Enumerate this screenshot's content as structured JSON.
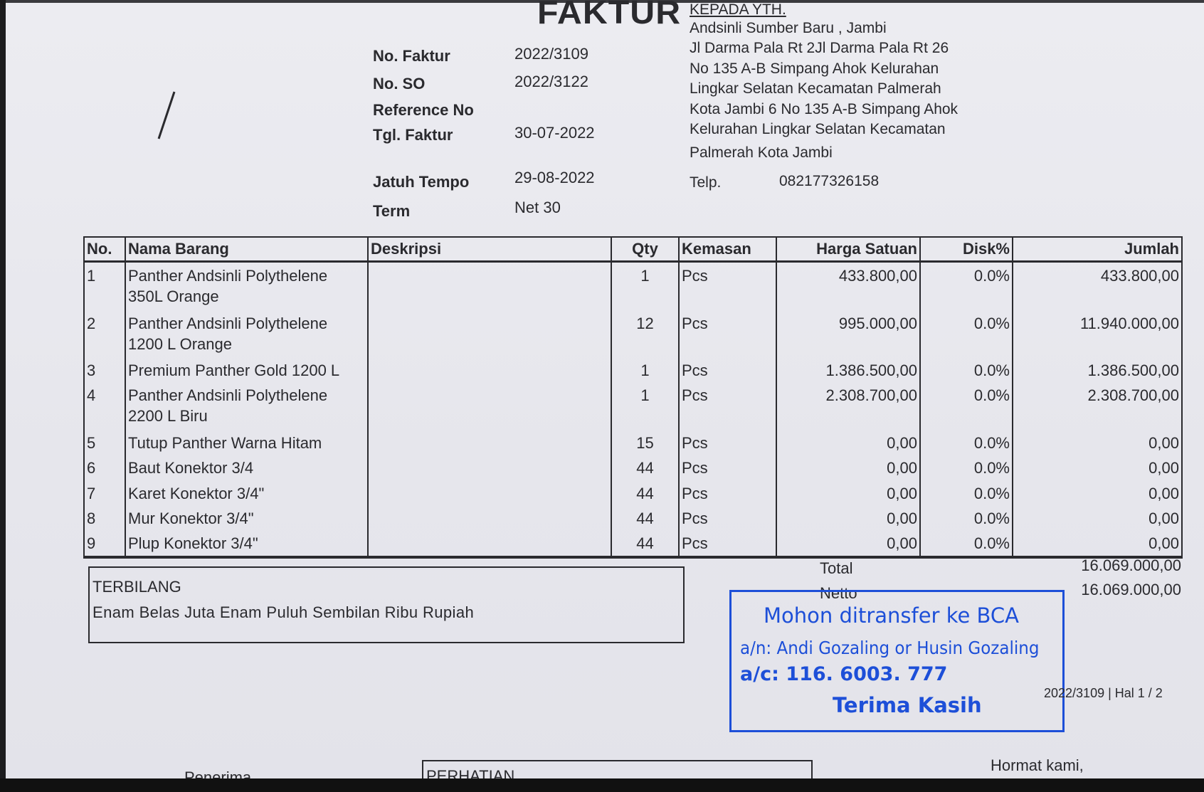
{
  "title": "FAKTUR",
  "recipient": {
    "heading": "KEPADA YTH.",
    "address_lines": [
      "Andsinli Sumber Baru , Jambi",
      "Jl Darma Pala Rt 2Jl Darma Pala Rt 26",
      "No 135 A-B Simpang Ahok Kelurahan",
      "Lingkar Selatan Kecamatan Palmerah",
      "Kota Jambi 6 No 135 A-B Simpang Ahok",
      "Kelurahan Lingkar Selatan Kecamatan",
      "Palmerah Kota Jambi"
    ],
    "telp_label": "Telp.",
    "telp": "082177326158"
  },
  "meta": [
    {
      "label": "No. Faktur",
      "value": "2022/3109"
    },
    {
      "label": "No. SO",
      "value": "2022/3122"
    },
    {
      "label": "Reference No",
      "value": ""
    },
    {
      "label": "Tgl. Faktur",
      "value": "30-07-2022"
    },
    {
      "label": "Jatuh Tempo",
      "value": "29-08-2022"
    },
    {
      "label": "Term",
      "value": "Net 30"
    }
  ],
  "table": {
    "headers": [
      "No.",
      "Nama Barang",
      "Deskripsi",
      "Qty",
      "Kemasan",
      "Harga Satuan",
      "Disk%",
      "Jumlah"
    ],
    "rows": [
      {
        "no": "1",
        "name": "Panther Andsinli Polythelene 350L Orange",
        "desc": "",
        "qty": "1",
        "unit": "Pcs",
        "price": "433.800,00",
        "disc": "0.0%",
        "amount": "433.800,00"
      },
      {
        "no": "2",
        "name": "Panther Andsinli Polythelene 1200 L Orange",
        "desc": "",
        "qty": "12",
        "unit": "Pcs",
        "price": "995.000,00",
        "disc": "0.0%",
        "amount": "11.940.000,00"
      },
      {
        "no": "3",
        "name": "Premium Panther Gold 1200 L",
        "desc": "",
        "qty": "1",
        "unit": "Pcs",
        "price": "1.386.500,00",
        "disc": "0.0%",
        "amount": "1.386.500,00"
      },
      {
        "no": "4",
        "name": "Panther Andsinli Polythelene 2200 L Biru",
        "desc": "",
        "qty": "1",
        "unit": "Pcs",
        "price": "2.308.700,00",
        "disc": "0.0%",
        "amount": "2.308.700,00"
      },
      {
        "no": "5",
        "name": "Tutup Panther Warna Hitam",
        "desc": "",
        "qty": "15",
        "unit": "Pcs",
        "price": "0,00",
        "disc": "0.0%",
        "amount": "0,00"
      },
      {
        "no": "6",
        "name": "Baut Konektor 3/4",
        "desc": "",
        "qty": "44",
        "unit": "Pcs",
        "price": "0,00",
        "disc": "0.0%",
        "amount": "0,00"
      },
      {
        "no": "7",
        "name": "Karet Konektor 3/4\"",
        "desc": "",
        "qty": "44",
        "unit": "Pcs",
        "price": "0,00",
        "disc": "0.0%",
        "amount": "0,00"
      },
      {
        "no": "8",
        "name": "Mur Konektor 3/4\"",
        "desc": "",
        "qty": "44",
        "unit": "Pcs",
        "price": "0,00",
        "disc": "0.0%",
        "amount": "0,00"
      },
      {
        "no": "9",
        "name": "Plup Konektor 3/4\"",
        "desc": "",
        "qty": "44",
        "unit": "Pcs",
        "price": "0,00",
        "disc": "0.0%",
        "amount": "0,00"
      }
    ]
  },
  "terbilang": {
    "label": "TERBILANG",
    "text": "Enam Belas Juta Enam Puluh Sembilan Ribu Rupiah"
  },
  "totals": {
    "total_label": "Total",
    "total": "16.069.000,00",
    "netto_label": "Netto",
    "netto": "16.069.000,00"
  },
  "stamp": {
    "line1": "Mohon ditransfer ke BCA",
    "line2": "a/n: Andi Gozaling or Husin Gozaling",
    "line3": "a/c: 116. 6003. 777",
    "line4": "Terima Kasih",
    "color": "#1d4fd8"
  },
  "page_ref": "2022/3109 | Hal 1 / 2",
  "footer": {
    "penerima": "Penerima,",
    "perhatian": "PERHATIAN",
    "hormat": "Hormat kami,"
  }
}
